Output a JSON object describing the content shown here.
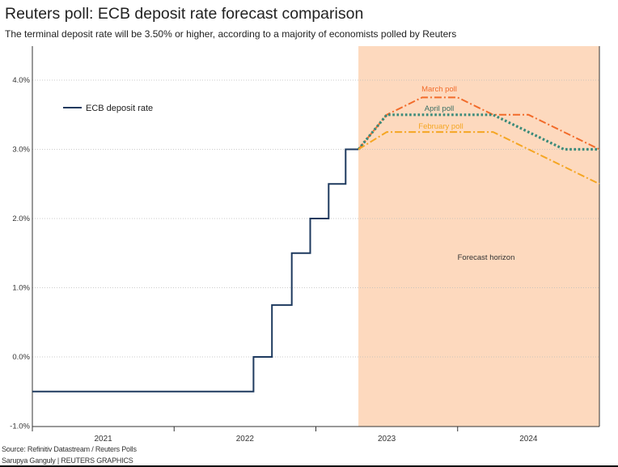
{
  "title": "Reuters poll: ECB deposit rate forecast comparison",
  "subtitle": "The terminal deposit rate will be 3.50% or higher, according to a majority of economists polled by Reuters",
  "source": "Source: Refinitiv Datastream / Reuters Polls",
  "credit": "Sarupya Ganguly | REUTERS GRAPHICS",
  "chart_data": {
    "type": "line",
    "title": "Reuters poll: ECB deposit rate forecast comparison",
    "xlim": [
      2021,
      2025
    ],
    "ylim": [
      -1.0,
      4.5
    ],
    "x_tick_labels": [
      "2021",
      "2022",
      "2023",
      "2024"
    ],
    "y_ticks": [
      -1.0,
      0.0,
      1.0,
      2.0,
      3.0,
      4.0
    ],
    "y_tick_labels": [
      "-1.0%",
      "0.0%",
      "1.0%",
      "2.0%",
      "3.0%",
      "4.0%"
    ],
    "grid": "horizontal dotted",
    "legend": {
      "placement": "top-left",
      "entries": [
        "ECB deposit rate"
      ]
    },
    "shaded_region": {
      "label": "Forecast horizon",
      "x_start": 2023.3,
      "x_end": 2025.0,
      "color": "#fdd9be"
    },
    "series": [
      {
        "name": "ECB deposit rate",
        "style": "step",
        "color": "#1e3a5f",
        "x": [
          2021.0,
          2022.56,
          2022.56,
          2022.69,
          2022.69,
          2022.83,
          2022.83,
          2022.96,
          2022.96,
          2023.09,
          2023.09,
          2023.21,
          2023.21,
          2023.3
        ],
        "y": [
          -0.5,
          -0.5,
          0.0,
          0.0,
          0.75,
          0.75,
          1.5,
          1.5,
          2.0,
          2.0,
          2.5,
          2.5,
          3.0,
          3.0
        ]
      },
      {
        "name": "March poll",
        "style": "dashdot",
        "color": "#f26b2a",
        "x": [
          2023.3,
          2023.5,
          2023.75,
          2024.0,
          2024.25,
          2024.5,
          2025.0
        ],
        "y": [
          3.0,
          3.5,
          3.75,
          3.75,
          3.5,
          3.5,
          3.0
        ]
      },
      {
        "name": "April poll",
        "style": "dotted",
        "color": "#3a8a7a",
        "x": [
          2023.3,
          2023.5,
          2024.25,
          2024.75,
          2025.0
        ],
        "y": [
          3.0,
          3.5,
          3.5,
          3.0,
          3.0
        ]
      },
      {
        "name": "February poll",
        "style": "dashdot",
        "color": "#f5a623",
        "x": [
          2023.3,
          2023.5,
          2024.25,
          2025.0
        ],
        "y": [
          3.0,
          3.25,
          3.25,
          2.5
        ]
      }
    ],
    "annotations": [
      "March poll",
      "April poll",
      "February poll",
      "Forecast horizon"
    ]
  }
}
